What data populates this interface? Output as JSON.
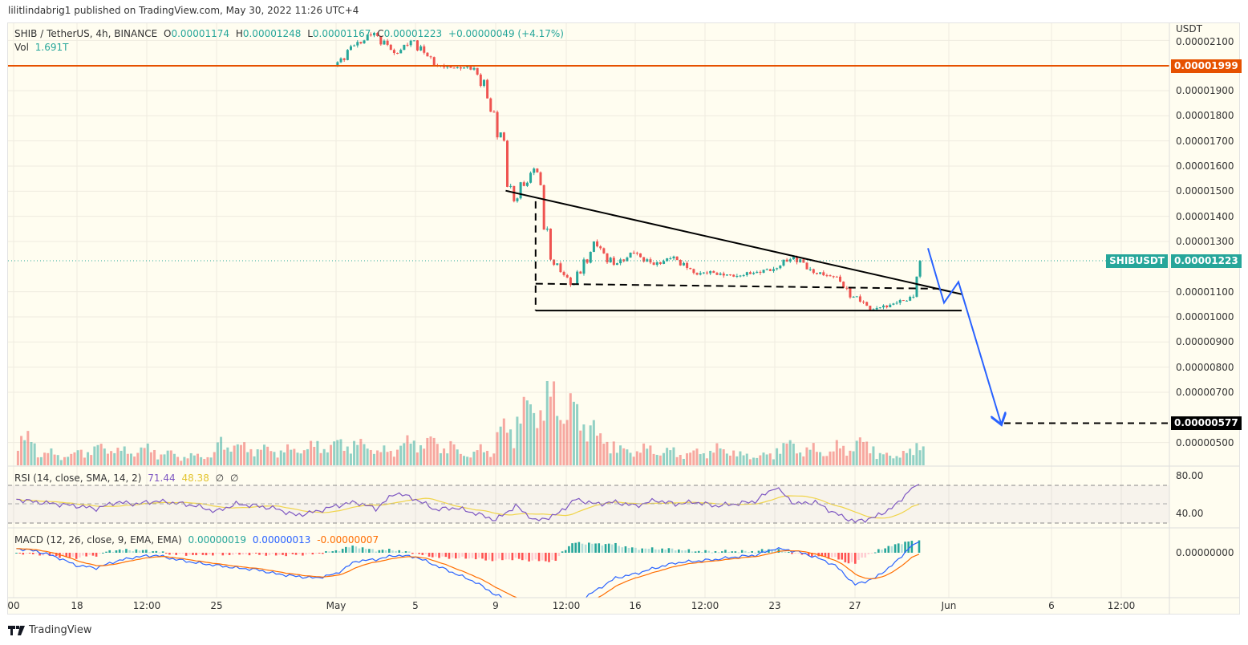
{
  "header": {
    "published": "lilitlindabrig1 published on TradingView.com, May 30, 2022 11:26 UTC+4"
  },
  "legend": {
    "symbol": "SHIB / TetherUS, 4h, BINANCE",
    "open_label": "O",
    "open": "0.00001174",
    "high_label": "H",
    "high": "0.00001248",
    "low_label": "L",
    "low": "0.00001167",
    "close_label": "C",
    "close": "0.00001223",
    "change": "+0.00000049 (+4.17%)",
    "vol_label": "Vol",
    "vol": "1.691T"
  },
  "rsi_legend": {
    "label": "RSI (14, close, SMA, 14, 2)",
    "rsi": "71.44",
    "sma": "48.38",
    "v3": "∅",
    "v4": "∅"
  },
  "macd_legend": {
    "label": "MACD (12, 26, close, 9, EMA, EMA)",
    "hist": "0.00000019",
    "macd": "0.00000013",
    "signal": "-0.00000007"
  },
  "price_axis": {
    "currency": "USDT",
    "ticks": [
      "0.00002100",
      "0.00001900",
      "0.00001800",
      "0.00001700",
      "0.00001600",
      "0.00001500",
      "0.00001400",
      "0.00001300",
      "0.00001100",
      "0.00001000",
      "0.00000900",
      "0.00000800",
      "0.00000700",
      "0.00000500"
    ],
    "resistance_badge": "0.00001999",
    "symbol_badge": "SHIBUSDT",
    "last_price_badge": "0.00001223",
    "target_badge": "0.00000577"
  },
  "rsi_axis": {
    "ticks": [
      "80.00",
      "40.00"
    ]
  },
  "macd_axis": {
    "ticks": [
      "0.00000000"
    ]
  },
  "time_axis": {
    "labels": [
      "00",
      "18",
      "12:00",
      "25",
      "May",
      "5",
      "9",
      "12:00",
      "16",
      "12:00",
      "23",
      "27",
      "Jun",
      "6",
      "12:00"
    ]
  },
  "footer": {
    "brand": "TradingView"
  },
  "colors": {
    "up": "#26a69a",
    "down": "#ef5350",
    "resistance": "#e65100",
    "projection": "#2962ff",
    "rsi": "#7e57c2",
    "rsi_sma": "#f0d44a",
    "macd": "#2962ff",
    "signal": "#ff6d00",
    "background": "#fffdf0"
  },
  "chart_data": {
    "type": "candlestick",
    "interval": "4h",
    "price_unit": "USDT",
    "ylim": [
      4.4e-06,
      2.11e-05
    ],
    "first_open": 2e-05,
    "daily_closes": [
      [
        "2022-05-01",
        2.08e-05
      ],
      [
        "2022-05-02",
        2.13e-05
      ],
      [
        "2022-05-03",
        2.05e-05
      ],
      [
        "2022-05-04",
        2.1e-05
      ],
      [
        "2022-05-05",
        2e-05
      ],
      [
        "2022-05-06",
        1.99e-05
      ],
      [
        "2022-05-07",
        1.99e-05
      ],
      [
        "2022-05-08",
        1.815e-05
      ],
      [
        "2022-05-09",
        1.46e-05
      ],
      [
        "2022-05-10",
        1.59e-05
      ],
      [
        "2022-05-11",
        1.207e-05
      ],
      [
        "2022-05-12",
        1.13e-05
      ],
      [
        "2022-05-13",
        1.3e-05
      ],
      [
        "2022-05-14",
        1.207e-05
      ],
      [
        "2022-05-15",
        1.255e-05
      ],
      [
        "2022-05-16",
        1.207e-05
      ],
      [
        "2022-05-17",
        1.24e-05
      ],
      [
        "2022-05-18",
        1.175e-05
      ],
      [
        "2022-05-19",
        1.175e-05
      ],
      [
        "2022-05-20",
        1.16e-05
      ],
      [
        "2022-05-21",
        1.175e-05
      ],
      [
        "2022-05-22",
        1.19e-05
      ],
      [
        "2022-05-23",
        1.24e-05
      ],
      [
        "2022-05-24",
        1.175e-05
      ],
      [
        "2022-05-25",
        1.16e-05
      ],
      [
        "2022-05-26",
        1.08e-05
      ],
      [
        "2022-05-27",
        1.03e-05
      ],
      [
        "2022-05-28",
        1.053e-05
      ],
      [
        "2022-05-29",
        1.08e-05
      ],
      [
        "2022-05-30",
        1.223e-05
      ]
    ],
    "volume_dates_start": "2022-04-15",
    "daily_volume_T": [
      2.5,
      1.2,
      1.0,
      1.5,
      1.8,
      1.4,
      1.6,
      1.2,
      0.9,
      1.0,
      2.2,
      1.8,
      1.6,
      1.5,
      1.8,
      2.0,
      2.2,
      2.0,
      1.4,
      2.2,
      2.4,
      2.0,
      1.2,
      1.5,
      3.5,
      5.5,
      6.5,
      6.0,
      4.5,
      2.5,
      1.5,
      1.6,
      1.4,
      1.2,
      1.4,
      1.6,
      1.0,
      1.0,
      2.0,
      1.6,
      1.4,
      1.8,
      2.2,
      1.0,
      1.2,
      2.5
    ],
    "rsi_daily": [
      55,
      52,
      50,
      48,
      45,
      52,
      50,
      53,
      51,
      48,
      42,
      50,
      48,
      45,
      38,
      42,
      48,
      52,
      45,
      62,
      55,
      44,
      46,
      40,
      33,
      48,
      32,
      38,
      55,
      50,
      52,
      48,
      54,
      50,
      52,
      48,
      50,
      53,
      68,
      50,
      52,
      40,
      31,
      36,
      48,
      71
    ],
    "macd_daily": [
      5,
      2,
      -5,
      -15,
      -18,
      -10,
      -5,
      -3,
      -8,
      -12,
      -15,
      -18,
      -20,
      -25,
      -28,
      -30,
      -25,
      -10,
      -8,
      -3,
      -5,
      -15,
      -25,
      -35,
      -50,
      -60,
      -75,
      -90,
      -60,
      -45,
      -30,
      -25,
      -18,
      -12,
      -10,
      -8,
      -5,
      -3,
      5,
      2,
      -5,
      -15,
      -38,
      -30,
      -12,
      13
    ],
    "macd_unit": 1e-08,
    "drawings": {
      "resistance_level": 1.999e-05,
      "descending_trendline": [
        [
          "2022-05-09 12:00",
          1.502e-05
        ],
        [
          "2022-06-01 08:00",
          1.09e-05
        ]
      ],
      "support_line": [
        [
          "2022-05-11 00:00",
          1.025e-05
        ],
        [
          "2022-06-01 08:00",
          1.025e-05
        ]
      ],
      "dashed_mid_line": [
        [
          "2022-05-11 00:00",
          1.132e-05
        ],
        [
          "2022-05-31 04:00",
          1.112e-05
        ]
      ],
      "projection_path": [
        1.273e-05,
        1.056e-05,
        1.139e-05,
        5.77e-06
      ],
      "target_level": 5.77e-06
    }
  }
}
